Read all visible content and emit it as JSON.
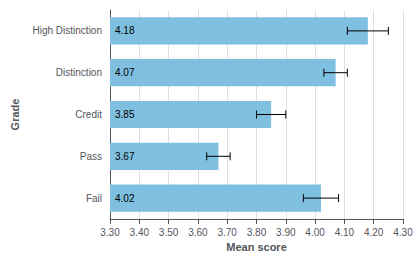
{
  "chart_data": {
    "type": "bar",
    "orientation": "horizontal",
    "categories": [
      "High Distinction",
      "Distinction",
      "Credit",
      "Pass",
      "Fail"
    ],
    "values": [
      4.18,
      4.07,
      3.85,
      3.67,
      4.02
    ],
    "errors": [
      0.07,
      0.04,
      0.05,
      0.04,
      0.06
    ],
    "color": "#7fbfdf",
    "xlabel": "Mean score",
    "ylabel": "Grade",
    "xlim": [
      3.3,
      4.3
    ],
    "xticks": [
      {
        "value": 3.3,
        "label": "3.30"
      },
      {
        "value": 3.4,
        "label": "3.40"
      },
      {
        "value": 3.5,
        "label": "3.50"
      },
      {
        "value": 3.6,
        "label": "3.60"
      },
      {
        "value": 3.7,
        "label": "3.70"
      },
      {
        "value": 3.8,
        "label": "3.80"
      },
      {
        "value": 3.9,
        "label": "3.90"
      },
      {
        "value": 4.0,
        "label": "4.00"
      },
      {
        "value": 4.1,
        "label": "4.10"
      },
      {
        "value": 4.2,
        "label": "4.20"
      },
      {
        "value": 4.3,
        "label": "4.30"
      }
    ],
    "grid": true,
    "data_labels": true
  }
}
